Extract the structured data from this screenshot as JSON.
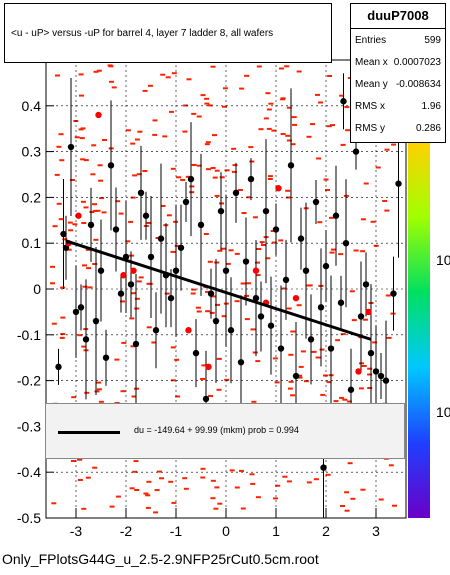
{
  "chart_data": {
    "type": "scatter",
    "title": "<u - uP>       versus  -uP for barrel 4, layer 7 ladder 8, all wafers",
    "xlabel": "",
    "ylabel": "",
    "xlim": [
      -3.6,
      3.6
    ],
    "ylim": [
      -0.5,
      0.5
    ],
    "x_ticks": [
      -3,
      -2,
      -1,
      0,
      1,
      2,
      3
    ],
    "y_ticks": [
      -0.5,
      -0.4,
      -0.3,
      -0.2,
      -0.1,
      0,
      0.1,
      0.2,
      0.3,
      0.4
    ],
    "y_tick_labels": [
      "-0.5",
      "-0.4",
      "-0.3",
      "-0.2",
      "-0.1",
      "0",
      "0.1",
      "0.2",
      "0.3",
      "0.4"
    ],
    "x_tick_labels": [
      "-3",
      "-2",
      "-1",
      "0",
      "1",
      "2",
      "3"
    ],
    "z_axis_labels": [
      "10",
      "10"
    ],
    "fit_line": {
      "x": [
        -3.2,
        2.9
      ],
      "y": [
        0.105,
        -0.11
      ]
    },
    "black_points": [
      {
        "x": -3.35,
        "y": -0.17
      },
      {
        "x": -3.25,
        "y": 0.12
      },
      {
        "x": -3.2,
        "y": 0.09
      },
      {
        "x": -3.1,
        "y": 0.31
      },
      {
        "x": -3.0,
        "y": -0.05
      },
      {
        "x": -2.9,
        "y": -0.04
      },
      {
        "x": -2.8,
        "y": -0.11
      },
      {
        "x": -2.7,
        "y": 0.14
      },
      {
        "x": -2.6,
        "y": -0.07
      },
      {
        "x": -2.5,
        "y": 0.04
      },
      {
        "x": -2.4,
        "y": -0.15
      },
      {
        "x": -2.3,
        "y": 0.27
      },
      {
        "x": -2.2,
        "y": 0.13
      },
      {
        "x": -2.1,
        "y": -0.01
      },
      {
        "x": -2.0,
        "y": 0.07
      },
      {
        "x": -1.9,
        "y": 0.01
      },
      {
        "x": -1.8,
        "y": -0.12
      },
      {
        "x": -1.7,
        "y": 0.21
      },
      {
        "x": -1.6,
        "y": 0.16
      },
      {
        "x": -1.5,
        "y": 0.07
      },
      {
        "x": -1.4,
        "y": -0.09
      },
      {
        "x": -1.3,
        "y": 0.11
      },
      {
        "x": -1.2,
        "y": 0.03
      },
      {
        "x": -1.1,
        "y": -0.02
      },
      {
        "x": -1.0,
        "y": 0.04
      },
      {
        "x": -0.9,
        "y": 0.09
      },
      {
        "x": -0.8,
        "y": 0.19
      },
      {
        "x": -0.7,
        "y": 0.24
      },
      {
        "x": -0.6,
        "y": -0.14
      },
      {
        "x": -0.5,
        "y": 0.14
      },
      {
        "x": -0.4,
        "y": -0.24
      },
      {
        "x": -0.3,
        "y": -0.01
      },
      {
        "x": -0.2,
        "y": -0.07
      },
      {
        "x": -0.1,
        "y": 0.17
      },
      {
        "x": 0.0,
        "y": 0.04
      },
      {
        "x": 0.1,
        "y": -0.09
      },
      {
        "x": 0.2,
        "y": 0.21
      },
      {
        "x": 0.3,
        "y": -0.16
      },
      {
        "x": 0.4,
        "y": 0.06
      },
      {
        "x": 0.5,
        "y": 0.24
      },
      {
        "x": 0.6,
        "y": -0.02
      },
      {
        "x": 0.7,
        "y": -0.06
      },
      {
        "x": 0.8,
        "y": 0.17
      },
      {
        "x": 0.9,
        "y": -0.08
      },
      {
        "x": 1.0,
        "y": 0.13
      },
      {
        "x": 1.1,
        "y": -0.13
      },
      {
        "x": 1.2,
        "y": 0.02
      },
      {
        "x": 1.3,
        "y": 0.27
      },
      {
        "x": 1.4,
        "y": -0.19
      },
      {
        "x": 1.5,
        "y": 0.11
      },
      {
        "x": 1.6,
        "y": 0.04
      },
      {
        "x": 1.7,
        "y": -0.11
      },
      {
        "x": 1.8,
        "y": 0.19
      },
      {
        "x": 1.9,
        "y": -0.04
      },
      {
        "x": 2.0,
        "y": 0.05
      },
      {
        "x": 2.1,
        "y": -0.13
      },
      {
        "x": 2.2,
        "y": 0.16
      },
      {
        "x": 2.3,
        "y": -0.03
      },
      {
        "x": 2.4,
        "y": 0.1
      },
      {
        "x": 2.5,
        "y": -0.22
      },
      {
        "x": 2.6,
        "y": 0.3
      },
      {
        "x": 2.7,
        "y": -0.06
      },
      {
        "x": 2.8,
        "y": 0.01
      },
      {
        "x": 2.9,
        "y": -0.14
      },
      {
        "x": 3.0,
        "y": -0.18
      },
      {
        "x": 3.1,
        "y": -0.19
      },
      {
        "x": 3.2,
        "y": -0.2
      },
      {
        "x": 3.35,
        "y": -0.01
      },
      {
        "x": 3.45,
        "y": 0.23
      },
      {
        "x": 1.95,
        "y": -0.39
      },
      {
        "x": 2.35,
        "y": 0.41
      }
    ],
    "red_points": [
      {
        "x": -3.15,
        "y": 0.1
      },
      {
        "x": -2.95,
        "y": 0.16
      },
      {
        "x": -2.55,
        "y": 0.38
      },
      {
        "x": -2.05,
        "y": 0.03
      },
      {
        "x": -1.85,
        "y": 0.04
      },
      {
        "x": -0.75,
        "y": -0.09
      },
      {
        "x": -0.35,
        "y": -0.17
      },
      {
        "x": 0.6,
        "y": 0.04
      },
      {
        "x": 0.8,
        "y": -0.03
      },
      {
        "x": 1.05,
        "y": 0.22
      },
      {
        "x": 1.4,
        "y": -0.02
      },
      {
        "x": 2.65,
        "y": -0.18
      },
      {
        "x": 2.85,
        "y": -0.05
      }
    ]
  },
  "stats": {
    "name": "duuP7008",
    "rows": [
      {
        "label": "Entries",
        "value": "599"
      },
      {
        "label": "Mean x",
        "value": "0.0007023"
      },
      {
        "label": "Mean y",
        "value": "-0.008634"
      },
      {
        "label": "RMS x",
        "value": "1.96"
      },
      {
        "label": "RMS y",
        "value": "0.286"
      }
    ]
  },
  "legend": {
    "text": "du = -149.64 + 99.99 (mkm) prob = 0.994"
  },
  "footer": {
    "text": "Only_FPlotsG44G_u_2.5-2.9NFP25rCut0.5cm.root"
  },
  "colors": {
    "point_black": "#000000",
    "point_red": "#ff0000",
    "dash_red": "#ff2000",
    "fit": "#000000"
  }
}
